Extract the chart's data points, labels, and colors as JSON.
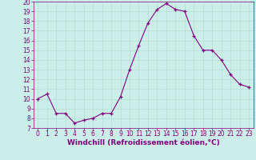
{
  "x": [
    0,
    1,
    2,
    3,
    4,
    5,
    6,
    7,
    8,
    9,
    10,
    11,
    12,
    13,
    14,
    15,
    16,
    17,
    18,
    19,
    20,
    21,
    22,
    23
  ],
  "y": [
    10,
    10.5,
    8.5,
    8.5,
    7.5,
    7.8,
    8.0,
    8.5,
    8.5,
    10.2,
    13.0,
    15.5,
    17.8,
    19.2,
    19.8,
    19.2,
    19.0,
    16.5,
    15.0,
    15.0,
    14.0,
    12.5,
    11.5,
    11.2
  ],
  "line_color": "#800080",
  "marker": "+",
  "marker_color": "#800080",
  "bg_color": "#cceee8",
  "grid_color": "#aaddcc",
  "xlabel": "Windchill (Refroidissement éolien,°C)",
  "ylim": [
    7,
    20
  ],
  "xlim_min": -0.5,
  "xlim_max": 23.5,
  "yticks": [
    7,
    8,
    9,
    10,
    11,
    12,
    13,
    14,
    15,
    16,
    17,
    18,
    19,
    20
  ],
  "xticks": [
    0,
    1,
    2,
    3,
    4,
    5,
    6,
    7,
    8,
    9,
    10,
    11,
    12,
    13,
    14,
    15,
    16,
    17,
    18,
    19,
    20,
    21,
    22,
    23
  ],
  "xlabel_fontsize": 6.5,
  "tick_fontsize": 5.5,
  "line_color_hex": "#800080",
  "axis_label_color": "#800080",
  "tick_color": "#800080",
  "spine_color": "#800080"
}
